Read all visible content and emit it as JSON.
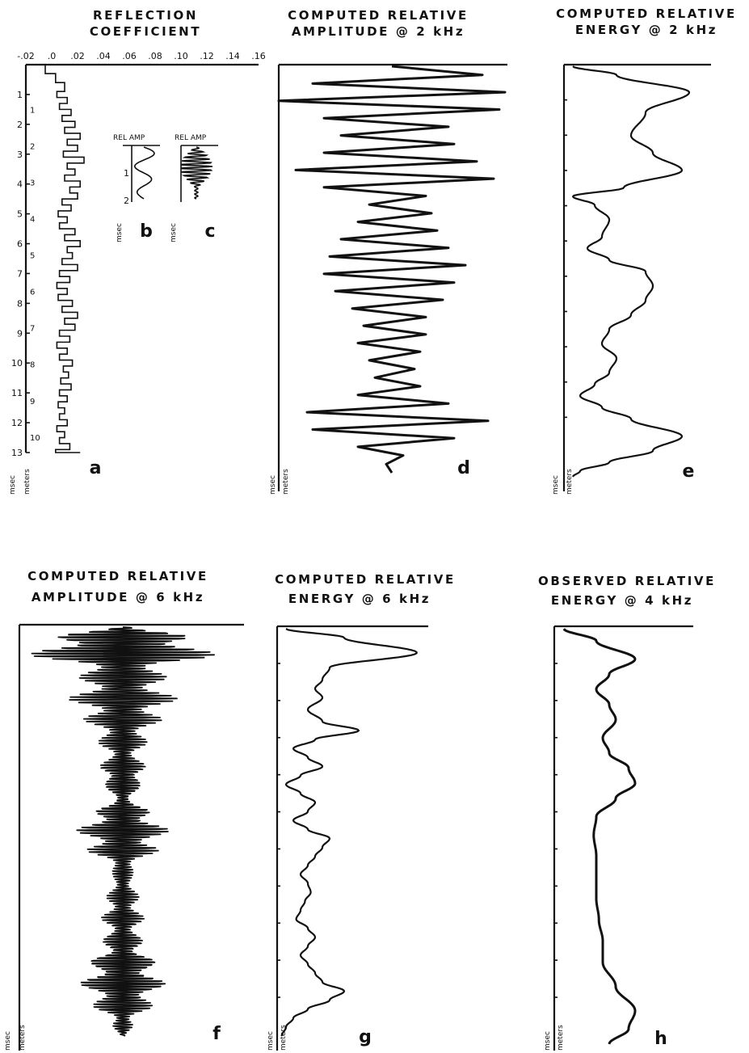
{
  "panels": {
    "a": {
      "title1": "REFLECTION",
      "title2": "COEFFICIENT",
      "label": "a",
      "xticks": [
        "-.02",
        ".0",
        ".02",
        ".04",
        ".06",
        ".08",
        ".10",
        ".12",
        ".14",
        ".16"
      ],
      "yticks": [
        "1",
        "2",
        "3",
        "4",
        "5",
        "6",
        "7",
        "8",
        "9",
        "10",
        "11",
        "12",
        "13"
      ],
      "depth_ticks": [
        "1",
        "2",
        "3",
        "4",
        "5",
        "6",
        "7",
        "8",
        "9",
        "10"
      ],
      "unit1": "msec",
      "unit2": "meters"
    },
    "b": {
      "title": "REL AMP",
      "label": "b",
      "yticks": [
        "1",
        "2"
      ],
      "unit": "msec"
    },
    "c": {
      "title": "REL AMP",
      "label": "c",
      "unit": "msec"
    },
    "d": {
      "title1": "COMPUTED RELATIVE",
      "title2": "AMPLITUDE @ 2 kHz",
      "label": "d",
      "unit1": "msec",
      "unit2": "meters"
    },
    "e": {
      "title1": "COMPUTED RELATIVE",
      "title2": "ENERGY @ 2 kHz",
      "label": "e",
      "unit1": "msec",
      "unit2": "meters"
    },
    "f": {
      "title1": "COMPUTED RELATIVE",
      "title2": "AMPLITUDE @ 6 kHz",
      "label": "f",
      "unit1": "msec",
      "unit2": "meters"
    },
    "g": {
      "title1": "COMPUTED RELATIVE",
      "title2": "ENERGY @ 6 kHz",
      "label": "g",
      "unit1": "msec",
      "unit2": "meters"
    },
    "h": {
      "title1": "OBSERVED RELATIVE",
      "title2": "ENERGY @ 4 kHz",
      "label": "h",
      "unit1": "msec",
      "unit2": "meters"
    }
  },
  "chart_data": [
    {
      "type": "line",
      "panel": "a",
      "title": "REFLECTION COEFFICIENT",
      "xlim": [
        -0.02,
        0.16
      ],
      "ylim": [
        0,
        13
      ],
      "x": [
        -0.005,
        0.003,
        0.01,
        0.004,
        0.012,
        0.006,
        0.015,
        0.008,
        0.018,
        0.01,
        0.022,
        0.012,
        0.02,
        0.009,
        0.025,
        0.012,
        0.018,
        0.01,
        0.022,
        0.014,
        0.02,
        0.008,
        0.015,
        0.005,
        0.012,
        0.006,
        0.018,
        0.01,
        0.022,
        0.012,
        0.016,
        0.008,
        0.02,
        0.006,
        0.014,
        0.004,
        0.012,
        0.005,
        0.016,
        0.008,
        0.02,
        0.01,
        0.018,
        0.006,
        0.014,
        0.004,
        0.012,
        0.006,
        0.016,
        0.009,
        0.013,
        0.007,
        0.015,
        0.006,
        0.012,
        0.005,
        0.01,
        0.006,
        0.012,
        0.004,
        0.01,
        0.006,
        0.014,
        0.003,
        0.018,
        0.005,
        0.02,
        0.008,
        0.022
      ],
      "y": [
        0.0,
        0.3,
        0.6,
        0.9,
        1.1,
        1.3,
        1.5,
        1.7,
        1.9,
        2.1,
        2.3,
        2.5,
        2.7,
        2.9,
        3.1,
        3.3,
        3.5,
        3.7,
        3.9,
        4.1,
        4.3,
        4.5,
        4.7,
        4.9,
        5.1,
        5.3,
        5.5,
        5.7,
        5.9,
        6.1,
        6.3,
        6.5,
        6.7,
        6.9,
        7.1,
        7.3,
        7.5,
        7.7,
        7.9,
        8.1,
        8.3,
        8.5,
        8.7,
        8.9,
        9.1,
        9.3,
        9.5,
        9.7,
        9.9,
        10.1,
        10.3,
        10.5,
        10.7,
        10.9,
        11.1,
        11.3,
        11.5,
        11.7,
        11.9,
        12.1,
        12.3,
        12.5,
        12.7,
        12.9,
        13.0,
        13.0,
        13.0,
        13.0,
        13.0
      ],
      "xlabel": "",
      "ylabel": "msec"
    },
    {
      "type": "line",
      "panel": "d",
      "title": "COMPUTED RELATIVE AMPLITUDE @ 2 kHz",
      "x": [
        0.0,
        0.8,
        -0.7,
        1.0,
        -1.0,
        0.95,
        -0.6,
        0.5,
        -0.45,
        0.55,
        -0.6,
        0.75,
        -0.85,
        0.9,
        -0.6,
        0.3,
        -0.2,
        0.35,
        -0.3,
        0.4,
        -0.45,
        0.5,
        -0.55,
        0.65,
        -0.6,
        0.55,
        -0.5,
        0.45,
        -0.35,
        0.3,
        -0.25,
        0.3,
        -0.3,
        0.25,
        -0.2,
        0.2,
        -0.15,
        0.25,
        -0.3,
        0.5,
        -0.75,
        0.85,
        -0.7,
        0.55,
        -0.3,
        0.1,
        -0.05,
        0.0
      ],
      "y": [
        0.0,
        0.3,
        0.6,
        0.9,
        1.2,
        1.5,
        1.8,
        2.1,
        2.4,
        2.7,
        3.0,
        3.3,
        3.6,
        3.9,
        4.2,
        4.5,
        4.8,
        5.1,
        5.4,
        5.7,
        6.0,
        6.3,
        6.6,
        6.9,
        7.2,
        7.5,
        7.8,
        8.1,
        8.4,
        8.7,
        9.0,
        9.3,
        9.6,
        9.9,
        10.2,
        10.5,
        10.8,
        11.1,
        11.4,
        11.7,
        12.0,
        12.3,
        12.6,
        12.9,
        13.2,
        13.5,
        13.8,
        14.1
      ],
      "xlabel": "",
      "ylabel": "msec"
    },
    {
      "type": "line",
      "panel": "e",
      "title": "COMPUTED RELATIVE ENERGY @ 2 kHz",
      "x": [
        0.05,
        0.35,
        0.85,
        0.55,
        0.45,
        0.6,
        0.8,
        0.4,
        0.05,
        0.2,
        0.3,
        0.25,
        0.15,
        0.3,
        0.55,
        0.6,
        0.55,
        0.45,
        0.3,
        0.25,
        0.35,
        0.3,
        0.2,
        0.1,
        0.25,
        0.45,
        0.8,
        0.6,
        0.3,
        0.1,
        0.05
      ],
      "y": [
        0.0,
        0.3,
        0.9,
        1.6,
        2.4,
        3.0,
        3.6,
        4.2,
        4.5,
        4.8,
        5.3,
        5.9,
        6.3,
        6.7,
        7.1,
        7.6,
        8.1,
        8.6,
        9.1,
        9.6,
        10.1,
        10.6,
        11.0,
        11.4,
        11.8,
        12.2,
        12.8,
        13.3,
        13.7,
        14.0,
        14.2
      ],
      "xlabel": "",
      "ylabel": "msec"
    },
    {
      "type": "line",
      "panel": "f",
      "title": "COMPUTED RELATIVE AMPLITUDE @ 6 kHz",
      "envelope_y": [
        0.0,
        0.5,
        1.0,
        1.5,
        2.0,
        2.5,
        3.0,
        3.5,
        4.0,
        4.5,
        5.0,
        5.5,
        6.0,
        6.5,
        7.0,
        7.5,
        8.0,
        8.5,
        9.0,
        9.5,
        10.0,
        10.5,
        11.0,
        11.5,
        12.0,
        12.5,
        13.0,
        13.5,
        14.0
      ],
      "envelope_x": [
        0.1,
        0.95,
        0.8,
        0.35,
        0.4,
        0.45,
        0.35,
        0.25,
        0.2,
        0.15,
        0.25,
        0.15,
        0.1,
        0.35,
        0.4,
        0.35,
        0.15,
        0.08,
        0.12,
        0.15,
        0.18,
        0.15,
        0.2,
        0.3,
        0.4,
        0.35,
        0.25,
        0.1,
        0.03
      ],
      "xlabel": "",
      "ylabel": "msec"
    },
    {
      "type": "line",
      "panel": "g",
      "title": "COMPUTED RELATIVE ENERGY @ 6 kHz",
      "x": [
        0.05,
        0.45,
        0.95,
        0.35,
        0.3,
        0.25,
        0.3,
        0.2,
        0.3,
        0.55,
        0.25,
        0.1,
        0.2,
        0.3,
        0.15,
        0.05,
        0.15,
        0.25,
        0.2,
        0.1,
        0.2,
        0.35,
        0.3,
        0.25,
        0.2,
        0.15,
        0.2,
        0.22,
        0.18,
        0.15,
        0.12,
        0.2,
        0.25,
        0.2,
        0.15,
        0.2,
        0.25,
        0.3,
        0.45,
        0.35,
        0.2,
        0.1,
        0.05,
        0.02
      ],
      "y": [
        0.0,
        0.3,
        0.8,
        1.3,
        1.7,
        2.0,
        2.3,
        2.7,
        3.1,
        3.4,
        3.7,
        4.0,
        4.3,
        4.6,
        4.9,
        5.2,
        5.5,
        5.8,
        6.1,
        6.4,
        6.7,
        7.0,
        7.3,
        7.6,
        7.9,
        8.2,
        8.5,
        8.8,
        9.1,
        9.4,
        9.7,
        10.0,
        10.3,
        10.6,
        10.9,
        11.2,
        11.5,
        11.8,
        12.1,
        12.4,
        12.7,
        13.0,
        13.3,
        13.6
      ],
      "xlabel": "",
      "ylabel": "msec"
    },
    {
      "type": "line",
      "panel": "h",
      "title": "OBSERVED RELATIVE ENERGY @ 4 kHz",
      "x": [
        0.05,
        0.3,
        0.6,
        0.4,
        0.3,
        0.4,
        0.45,
        0.35,
        0.4,
        0.55,
        0.6,
        0.45,
        0.3,
        0.28,
        0.3,
        0.3,
        0.3,
        0.32,
        0.35,
        0.35,
        0.45,
        0.6,
        0.55,
        0.4
      ],
      "y": [
        0.0,
        0.4,
        1.0,
        1.5,
        2.0,
        2.5,
        3.0,
        3.6,
        4.1,
        4.6,
        5.1,
        5.6,
        6.2,
        6.8,
        7.5,
        8.2,
        8.9,
        9.6,
        10.3,
        11.0,
        11.8,
        12.6,
        13.2,
        13.7
      ],
      "xlabel": "",
      "ylabel": "msec"
    }
  ]
}
